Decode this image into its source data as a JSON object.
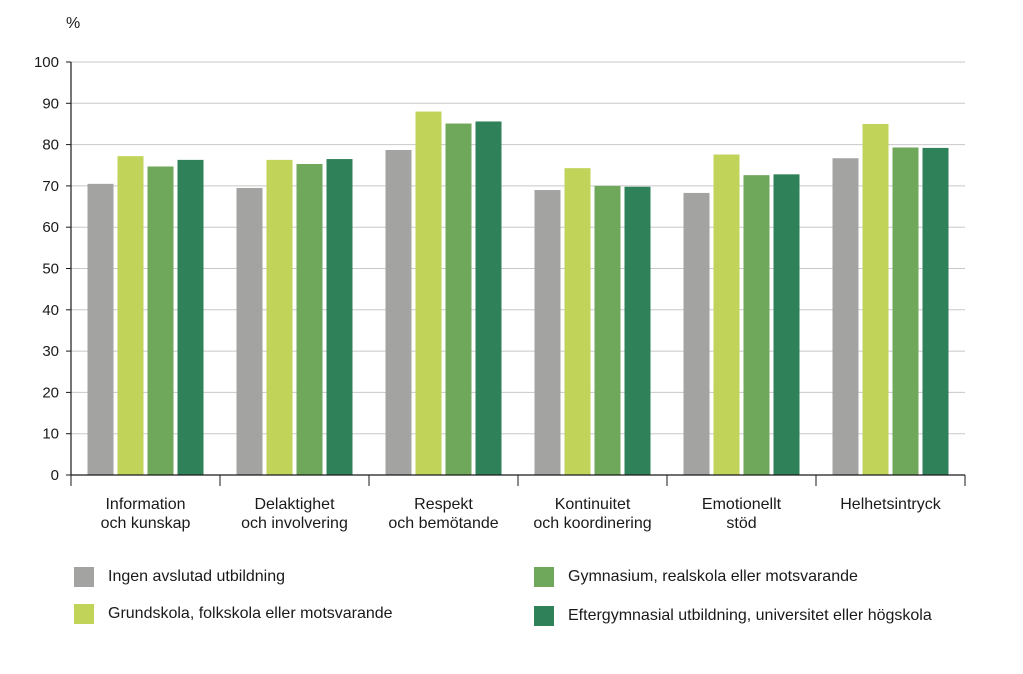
{
  "chart_data": {
    "type": "bar",
    "ylabel": "%",
    "ylim": [
      0,
      100
    ],
    "yticks": [
      0,
      10,
      20,
      30,
      40,
      50,
      60,
      70,
      80,
      90,
      100
    ],
    "grid": true,
    "legend_position": "bottom",
    "categories": [
      [
        "Information",
        "och kunskap"
      ],
      [
        "Delaktighet",
        "och involvering"
      ],
      [
        "Respekt",
        "och bemötande"
      ],
      [
        "Kontinuitet",
        "och koordinering"
      ],
      [
        "Emotionellt",
        "stöd"
      ],
      [
        "Helhetsintryck"
      ]
    ],
    "series": [
      {
        "name": "Ingen avslutad utbildning",
        "color": "#a3a3a1",
        "values": [
          70.5,
          69.5,
          78.7,
          69.0,
          68.3,
          76.7
        ]
      },
      {
        "name": "Grundskola, folkskola eller motsvarande",
        "color": "#c2d35a",
        "values": [
          77.2,
          76.3,
          88.0,
          74.3,
          77.6,
          85.0
        ]
      },
      {
        "name": "Gymnasium, realskola eller motsvarande",
        "color": "#6fa75b",
        "values": [
          74.7,
          75.3,
          85.1,
          70.0,
          72.6,
          79.3
        ]
      },
      {
        "name": "Eftergymnasial utbildning, universitet eller högskola",
        "color": "#2e8158",
        "values": [
          76.3,
          76.5,
          85.6,
          69.8,
          72.8,
          79.2
        ]
      }
    ]
  }
}
